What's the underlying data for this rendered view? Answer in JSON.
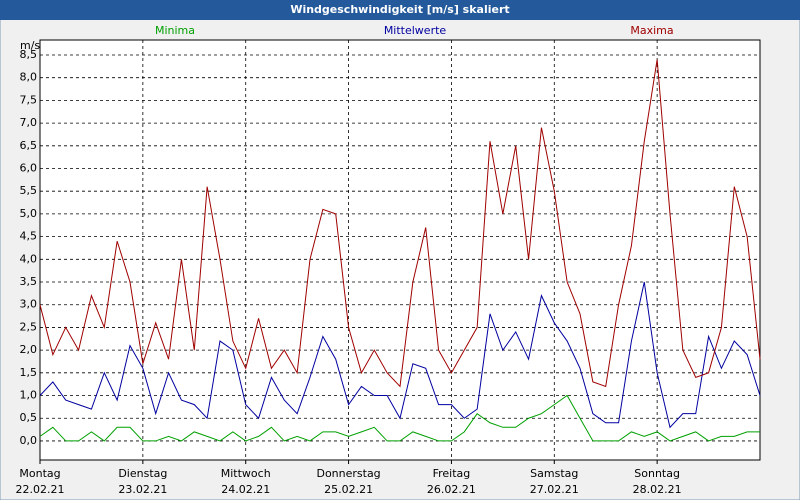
{
  "chart_data": {
    "type": "line",
    "title": "Windgeschwindigkeit [m/s] skaliert",
    "y_label": "m/s",
    "xlim": [
      0,
      7
    ],
    "ylim": [
      -0.42,
      8.83
    ],
    "xticks": [
      {
        "value": 0,
        "label": "Montag"
      },
      {
        "value": 1,
        "label": "Dienstag"
      },
      {
        "value": 2,
        "label": "Mittwoch"
      },
      {
        "value": 3,
        "label": "Donnerstag"
      },
      {
        "value": 4,
        "label": "Freitag"
      },
      {
        "value": 5,
        "label": "Samstag"
      },
      {
        "value": 6,
        "label": "Sonntag"
      }
    ],
    "xtick_dates": [
      "22.02.21",
      "23.02.21",
      "24.02.21",
      "25.02.21",
      "26.02.21",
      "27.02.21",
      "28.02.21"
    ],
    "yticks": [
      {
        "value": 0,
        "label": "0,0"
      },
      {
        "value": 0.5,
        "label": "0,5"
      },
      {
        "value": 1,
        "label": "1,0"
      },
      {
        "value": 1.5,
        "label": "1,5"
      },
      {
        "value": 2,
        "label": "2,0"
      },
      {
        "value": 2.5,
        "label": "2,5"
      },
      {
        "value": 3,
        "label": "3,0"
      },
      {
        "value": 3.5,
        "label": "3,5"
      },
      {
        "value": 4,
        "label": "4,0"
      },
      {
        "value": 4.5,
        "label": "4,5"
      },
      {
        "value": 5,
        "label": "5,0"
      },
      {
        "value": 5.5,
        "label": "5,5"
      },
      {
        "value": 6,
        "label": "6,0"
      },
      {
        "value": 6.5,
        "label": "6,5"
      },
      {
        "value": 7,
        "label": "7,0"
      },
      {
        "value": 7.5,
        "label": "7,5"
      },
      {
        "value": 8,
        "label": "8,0"
      },
      {
        "value": 8.5,
        "label": "8,5"
      }
    ],
    "grid": true,
    "x": [
      0,
      0.125,
      0.25,
      0.375,
      0.5,
      0.625,
      0.75,
      0.875,
      1,
      1.125,
      1.25,
      1.375,
      1.5,
      1.625,
      1.75,
      1.875,
      2,
      2.125,
      2.25,
      2.375,
      2.5,
      2.625,
      2.75,
      2.875,
      3,
      3.125,
      3.25,
      3.375,
      3.5,
      3.625,
      3.75,
      3.875,
      4,
      4.125,
      4.25,
      4.375,
      4.5,
      4.625,
      4.75,
      4.875,
      5,
      5.125,
      5.25,
      5.375,
      5.5,
      5.625,
      5.75,
      5.875,
      6,
      6.125,
      6.25,
      6.375,
      6.5,
      6.625,
      6.75,
      6.875,
      7
    ],
    "series": [
      {
        "name": "Minima",
        "color": "#00a000",
        "values": [
          0.1,
          0.3,
          0.0,
          0.0,
          0.2,
          0.0,
          0.3,
          0.3,
          0.0,
          0.0,
          0.1,
          0.0,
          0.2,
          0.1,
          0.0,
          0.2,
          0.0,
          0.1,
          0.3,
          0.0,
          0.1,
          0.0,
          0.2,
          0.2,
          0.1,
          0.2,
          0.3,
          0.0,
          0.0,
          0.2,
          0.1,
          0.0,
          0.0,
          0.2,
          0.6,
          0.4,
          0.3,
          0.3,
          0.5,
          0.6,
          0.8,
          1.0,
          0.5,
          0.0,
          0.0,
          0.0,
          0.2,
          0.1,
          0.2,
          0.0,
          0.1,
          0.2,
          0.0,
          0.1,
          0.1,
          0.2,
          0.2
        ]
      },
      {
        "name": "Mittelwerte",
        "color": "#0000a0",
        "values": [
          1.0,
          1.3,
          0.9,
          0.8,
          0.7,
          1.5,
          0.9,
          2.1,
          1.6,
          0.6,
          1.5,
          0.9,
          0.8,
          0.5,
          2.2,
          2.0,
          0.8,
          0.5,
          1.4,
          0.9,
          0.6,
          1.4,
          2.3,
          1.8,
          0.8,
          1.2,
          1.0,
          1.0,
          0.5,
          1.7,
          1.6,
          0.8,
          0.8,
          0.5,
          0.7,
          2.8,
          2.0,
          2.4,
          1.8,
          3.2,
          2.6,
          2.2,
          1.6,
          0.6,
          0.4,
          0.4,
          2.2,
          3.5,
          1.5,
          0.3,
          0.6,
          0.6,
          2.3,
          1.6,
          2.2,
          1.9,
          1.0
        ]
      },
      {
        "name": "Maxima",
        "color": "#a00000",
        "values": [
          3.0,
          1.9,
          2.5,
          2.0,
          3.2,
          2.5,
          4.4,
          3.5,
          1.7,
          2.6,
          1.8,
          4.0,
          2.0,
          5.6,
          4.0,
          2.2,
          1.6,
          2.7,
          1.6,
          2.0,
          1.5,
          4.0,
          5.1,
          5.0,
          2.5,
          1.5,
          2.0,
          1.5,
          1.2,
          3.5,
          4.7,
          2.0,
          1.5,
          2.0,
          2.5,
          6.6,
          5.0,
          6.5,
          4.0,
          6.9,
          5.5,
          3.5,
          2.8,
          1.3,
          1.2,
          3.0,
          4.3,
          6.6,
          8.4,
          5.0,
          2.0,
          1.4,
          1.5,
          2.5,
          5.6,
          4.5,
          1.8
        ]
      }
    ]
  }
}
